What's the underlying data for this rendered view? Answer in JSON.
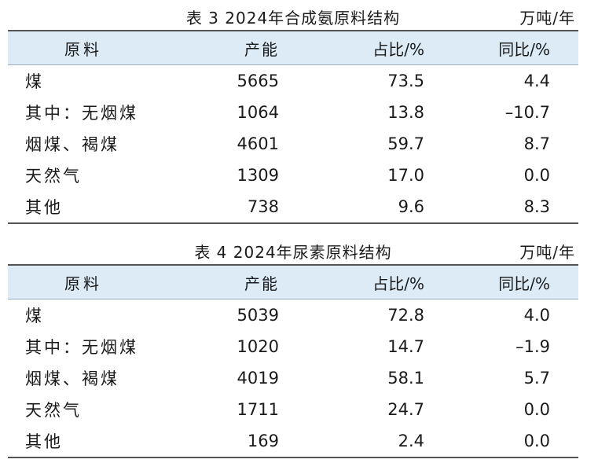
{
  "table1": {
    "title": "表 3 2024年合成氨原料结构",
    "unit": "万吨/年",
    "headers": [
      "原料",
      "产能",
      "占比/%",
      "同比/%"
    ],
    "rows": [
      {
        "material": "煤",
        "capacity": "5665",
        "share": "73.5",
        "yoy": "4.4"
      },
      {
        "material": "其中：无烟煤",
        "capacity": "1064",
        "share": "13.8",
        "yoy": "–10.7"
      },
      {
        "material": "烟煤、褐煤",
        "capacity": "4601",
        "share": "59.7",
        "yoy": "8.7"
      },
      {
        "material": "天然气",
        "capacity": "1309",
        "share": "17.0",
        "yoy": "0.0"
      },
      {
        "material": "其他",
        "capacity": "738",
        "share": "9.6",
        "yoy": "8.3"
      }
    ]
  },
  "table2": {
    "title": "表 4 2024年尿素原料结构",
    "unit": "万吨/年",
    "headers": [
      "原料",
      "产能",
      "占比/%",
      "同比/%"
    ],
    "rows": [
      {
        "material": "煤",
        "capacity": "5039",
        "share": "72.8",
        "yoy": "4.0"
      },
      {
        "material": "其中：无烟煤",
        "capacity": "1020",
        "share": "14.7",
        "yoy": "–1.9"
      },
      {
        "material": "烟煤、褐煤",
        "capacity": "4019",
        "share": "58.1",
        "yoy": "5.7"
      },
      {
        "material": "天然气",
        "capacity": "1711",
        "share": "24.7",
        "yoy": "0.0"
      },
      {
        "material": "其他",
        "capacity": "169",
        "share": "2.4",
        "yoy": "0.0"
      }
    ]
  },
  "colors": {
    "header_background": "#dcebf6",
    "rule": "#555555"
  }
}
